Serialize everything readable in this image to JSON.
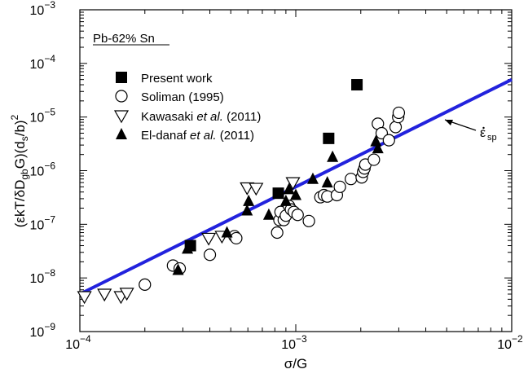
{
  "chart_data": {
    "type": "scatter",
    "title": "",
    "annotation": "Pb-62% Sn",
    "xlabel": "σ/G",
    "ylabel_parts": {
      "p1": "(",
      "epsdot": "ε",
      "p2": "kT/δD",
      "sub_gb": "gb",
      "p3": "G)(d",
      "sub_s": "s",
      "p4": "/b)",
      "sup_2": "2"
    },
    "line_label": {
      "epsdot": "ε",
      "sub": "sp"
    },
    "x_scale": "log",
    "y_scale": "log",
    "xlim": [
      0.0001,
      0.01
    ],
    "ylim": [
      1e-09,
      0.001
    ],
    "x_ticks": [
      {
        "value": 0.0001,
        "base": "10",
        "exp": "−4"
      },
      {
        "value": 0.001,
        "base": "10",
        "exp": "−3"
      },
      {
        "value": 0.01,
        "base": "10",
        "exp": "−2"
      }
    ],
    "y_ticks": [
      {
        "value": 1e-09,
        "base": "10",
        "exp": "−9"
      },
      {
        "value": 1e-08,
        "base": "10",
        "exp": "−8"
      },
      {
        "value": 1e-07,
        "base": "10",
        "exp": "−7"
      },
      {
        "value": 1e-06,
        "base": "10",
        "exp": "−6"
      },
      {
        "value": 1e-05,
        "base": "10",
        "exp": "−5"
      },
      {
        "value": 0.0001,
        "base": "10",
        "exp": "−4"
      },
      {
        "value": 0.001,
        "base": "10",
        "exp": "−3"
      }
    ],
    "grid": false,
    "legend_position": "upper-left",
    "fit_line": {
      "name": "ε̇sp",
      "color": "#2222dd",
      "x": [
        0.0001,
        0.01
      ],
      "y": [
        5e-09,
        5e-05
      ]
    },
    "series": [
      {
        "name": "Present work",
        "marker": "square-filled",
        "points": [
          [
            0.000325,
            4e-08
          ],
          [
            0.00083,
            3.8e-07
          ],
          [
            0.00142,
            4e-06
          ],
          [
            0.00192,
            4e-05
          ]
        ]
      },
      {
        "name": "Soliman (1995)",
        "marker": "circle-open",
        "points": [
          [
            0.0002,
            7.5e-09
          ],
          [
            0.00027,
            1.7e-08
          ],
          [
            0.00029,
            1.5e-08
          ],
          [
            0.0004,
            2.7e-08
          ],
          [
            0.00052,
            6e-08
          ],
          [
            0.00053,
            5.5e-08
          ],
          [
            0.00082,
            7e-08
          ],
          [
            0.00084,
            1.2e-07
          ],
          [
            0.00085,
            1.7e-07
          ],
          [
            0.00088,
            1.2e-07
          ],
          [
            0.0009,
            1.45e-07
          ],
          [
            0.00093,
            2.2e-07
          ],
          [
            0.00095,
            1.9e-07
          ],
          [
            0.00098,
            1.7e-07
          ],
          [
            0.00102,
            1.5e-07
          ],
          [
            0.00115,
            1.15e-07
          ],
          [
            0.0013,
            3.2e-07
          ],
          [
            0.00135,
            3.5e-07
          ],
          [
            0.0014,
            3.3e-07
          ],
          [
            0.00155,
            3.5e-07
          ],
          [
            0.0016,
            5e-07
          ],
          [
            0.0018,
            7e-07
          ],
          [
            0.00202,
            7.5e-07
          ],
          [
            0.00205,
            9.5e-07
          ],
          [
            0.00208,
            1.1e-06
          ],
          [
            0.0021,
            1.3e-06
          ],
          [
            0.0023,
            1.6e-06
          ],
          [
            0.0024,
            7.5e-06
          ],
          [
            0.0025,
            5e-06
          ],
          [
            0.0027,
            3.7e-06
          ],
          [
            0.0029,
            6.5e-06
          ],
          [
            0.00298,
            1e-05
          ],
          [
            0.003,
            1.2e-05
          ]
        ]
      },
      {
        "name": "Kawasaki et al. (2011)",
        "marker": "triangle-down-open",
        "points": [
          [
            0.000105,
            4.5e-09
          ],
          [
            0.00013,
            5e-09
          ],
          [
            0.000155,
            4.5e-09
          ],
          [
            0.000165,
            5.2e-09
          ],
          [
            0.000395,
            5.5e-08
          ],
          [
            0.000455,
            6e-08
          ],
          [
            0.000595,
            4.8e-07
          ],
          [
            0.000655,
            4.7e-07
          ],
          [
            0.00097,
            6e-07
          ]
        ]
      },
      {
        "name": "El-danaf et al. (2011)",
        "marker": "triangle-up-filled",
        "points": [
          [
            0.000285,
            1.4e-08
          ],
          [
            0.000315,
            3.5e-08
          ],
          [
            0.00048,
            7e-08
          ],
          [
            0.000595,
            1.8e-07
          ],
          [
            0.000605,
            2.7e-07
          ],
          [
            0.00075,
            1.5e-07
          ],
          [
            0.0009,
            2.7e-07
          ],
          [
            0.00093,
            4.5e-07
          ],
          [
            0.001,
            3.5e-07
          ],
          [
            0.0012,
            7e-07
          ],
          [
            0.0014,
            6e-07
          ],
          [
            0.00148,
            1.8e-06
          ],
          [
            0.00235,
            3.5e-06
          ],
          [
            0.0024,
            2.6e-06
          ]
        ]
      }
    ]
  }
}
